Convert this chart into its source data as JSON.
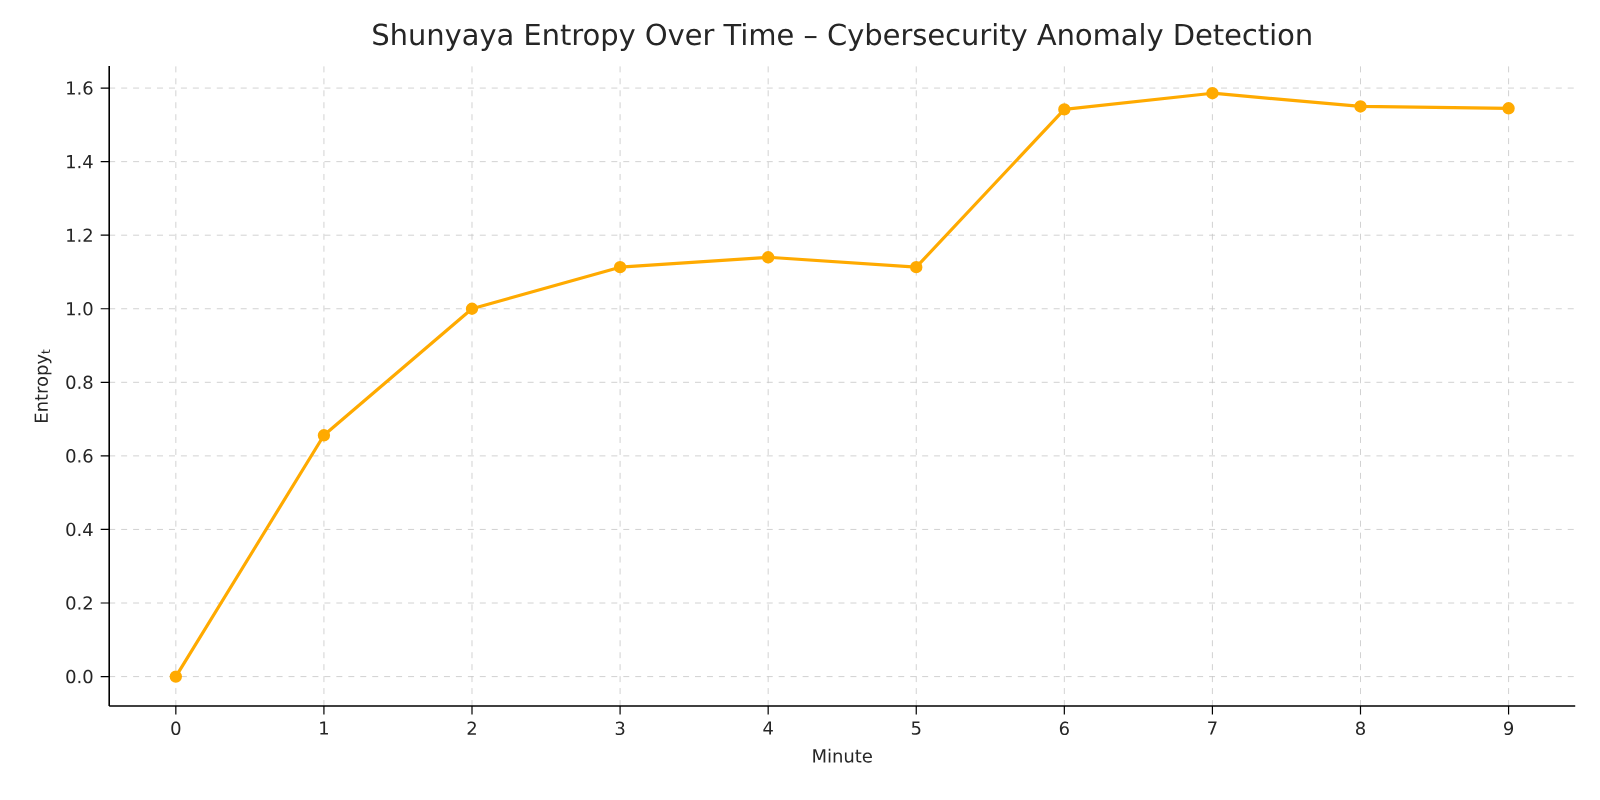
{
  "chart_data": {
    "type": "line",
    "title": "Shunyaya Entropy Over Time – Cybersecurity Anomaly Detection",
    "xlabel": "Minute",
    "ylabel": "Entropy$_{t}$",
    "x": [
      0,
      1,
      2,
      3,
      4,
      5,
      6,
      7,
      8,
      9
    ],
    "series": [
      {
        "color": "#ffaa00",
        "values": [
          0,
          0.656,
          1.0,
          1.113,
          1.14,
          1.113,
          1.542,
          1.586,
          1.55,
          1.545
        ]
      }
    ],
    "xlim": [
      -0.45,
      9.45
    ],
    "ylim": [
      -0.08,
      1.66
    ],
    "xticks": [
      0,
      1,
      2,
      3,
      4,
      5,
      6,
      7,
      8,
      9
    ],
    "yticks": [
      {
        "value": 0,
        "label": "0.0"
      },
      {
        "value": 0.2,
        "label": "0.2"
      },
      {
        "value": 0.4,
        "label": "0.4"
      },
      {
        "value": 0.6,
        "label": "0.6"
      },
      {
        "value": 0.8,
        "label": "0.8"
      },
      {
        "value": 1.0,
        "label": "1.0"
      },
      {
        "value": 1.2,
        "label": "1.2"
      },
      {
        "value": 1.4,
        "label": "1.4"
      },
      {
        "value": 1.6,
        "label": "1.6"
      }
    ],
    "grid": true,
    "marker": "circle",
    "line_style": "solid"
  }
}
